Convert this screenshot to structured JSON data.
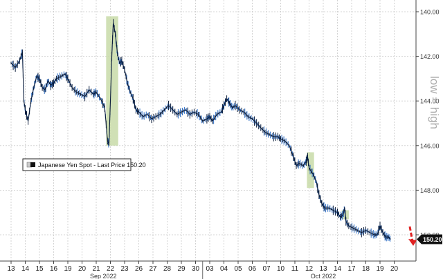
{
  "chart_data": {
    "type": "line",
    "style": "candlestick-like OHLC bars, dark navy with thin blue highlights",
    "x_tick_labels": [
      "13",
      "14",
      "15",
      "16",
      "19",
      "20",
      "21",
      "22",
      "23",
      "26",
      "27",
      "28",
      "29",
      "30",
      "03",
      "04",
      "05",
      "06",
      "07",
      "10",
      "11",
      "12",
      "13",
      "14",
      "17",
      "18",
      "19",
      "20"
    ],
    "x_period_labels": [
      {
        "label": "Sep 2022",
        "between": [
          "19",
          "26"
        ]
      },
      {
        "label": "Oct 2022",
        "between": [
          "12",
          "14"
        ]
      }
    ],
    "y_axis": {
      "side": "right",
      "inverted": true,
      "range": [
        140.0,
        151.0
      ],
      "tick_labels": [
        "140.00",
        "142.00",
        "144.00",
        "146.00",
        "148.00",
        "150.00"
      ]
    },
    "grid": true,
    "series": [
      {
        "name": "Japanese Yen Spot - Last Price",
        "last_value": 150.2,
        "points": [
          [
            0.0,
            142.3
          ],
          [
            0.3,
            142.5
          ],
          [
            0.6,
            142.2
          ],
          [
            0.8,
            141.8
          ],
          [
            0.9,
            144.0
          ],
          [
            1.0,
            144.4
          ],
          [
            1.2,
            144.9
          ],
          [
            1.4,
            144.0
          ],
          [
            1.6,
            143.4
          ],
          [
            1.8,
            142.9
          ],
          [
            2.0,
            143.0
          ],
          [
            2.2,
            143.4
          ],
          [
            2.4,
            143.5
          ],
          [
            2.6,
            143.1
          ],
          [
            2.8,
            143.3
          ],
          [
            3.0,
            143.2
          ],
          [
            3.2,
            143.0
          ],
          [
            3.5,
            142.9
          ],
          [
            3.8,
            142.8
          ],
          [
            4.0,
            143.0
          ],
          [
            4.3,
            143.4
          ],
          [
            4.6,
            143.6
          ],
          [
            4.9,
            143.7
          ],
          [
            5.2,
            143.8
          ],
          [
            5.5,
            143.5
          ],
          [
            5.8,
            143.7
          ],
          [
            6.0,
            143.6
          ],
          [
            6.3,
            143.9
          ],
          [
            6.6,
            144.3
          ],
          [
            6.8,
            145.8
          ],
          [
            6.9,
            145.9
          ],
          [
            7.0,
            144.0
          ],
          [
            7.1,
            142.0
          ],
          [
            7.2,
            140.5
          ],
          [
            7.35,
            141.0
          ],
          [
            7.5,
            141.9
          ],
          [
            7.65,
            142.3
          ],
          [
            7.8,
            142.2
          ],
          [
            8.0,
            142.6
          ],
          [
            8.2,
            143.2
          ],
          [
            8.4,
            143.6
          ],
          [
            8.6,
            143.9
          ],
          [
            8.8,
            144.4
          ],
          [
            9.0,
            144.5
          ],
          [
            9.3,
            144.7
          ],
          [
            9.6,
            144.6
          ],
          [
            9.9,
            144.8
          ],
          [
            10.2,
            144.7
          ],
          [
            10.5,
            144.6
          ],
          [
            10.8,
            144.4
          ],
          [
            11.1,
            144.2
          ],
          [
            11.4,
            144.4
          ],
          [
            11.7,
            144.6
          ],
          [
            12.0,
            144.5
          ],
          [
            12.3,
            144.4
          ],
          [
            12.6,
            144.6
          ],
          [
            12.9,
            144.5
          ],
          [
            13.2,
            144.6
          ],
          [
            13.5,
            144.9
          ],
          [
            13.8,
            144.8
          ],
          [
            14.0,
            144.7
          ],
          [
            14.2,
            144.9
          ],
          [
            14.5,
            144.6
          ],
          [
            14.8,
            144.5
          ],
          [
            15.0,
            144.2
          ],
          [
            15.2,
            143.9
          ],
          [
            15.4,
            144.1
          ],
          [
            15.6,
            144.3
          ],
          [
            15.8,
            144.2
          ],
          [
            16.1,
            144.4
          ],
          [
            16.4,
            144.5
          ],
          [
            16.7,
            144.7
          ],
          [
            17.0,
            144.8
          ],
          [
            17.3,
            145.0
          ],
          [
            17.6,
            145.2
          ],
          [
            17.9,
            145.4
          ],
          [
            18.2,
            145.5
          ],
          [
            18.5,
            145.6
          ],
          [
            18.8,
            145.6
          ],
          [
            19.0,
            145.7
          ],
          [
            19.3,
            145.8
          ],
          [
            19.6,
            146.0
          ],
          [
            19.9,
            146.5
          ],
          [
            20.1,
            146.9
          ],
          [
            20.3,
            146.8
          ],
          [
            20.6,
            146.9
          ],
          [
            20.8,
            146.7
          ],
          [
            20.9,
            146.5
          ],
          [
            21.0,
            147.0
          ],
          [
            21.3,
            147.3
          ],
          [
            21.5,
            147.6
          ],
          [
            21.7,
            148.2
          ],
          [
            21.9,
            148.6
          ],
          [
            22.1,
            148.8
          ],
          [
            22.4,
            148.8
          ],
          [
            22.7,
            148.9
          ],
          [
            23.0,
            149.0
          ],
          [
            23.2,
            149.2
          ],
          [
            23.4,
            149.1
          ],
          [
            23.5,
            148.8
          ],
          [
            23.6,
            149.4
          ],
          [
            23.8,
            149.6
          ],
          [
            24.1,
            149.7
          ],
          [
            24.4,
            149.8
          ],
          [
            24.7,
            149.9
          ],
          [
            25.0,
            149.8
          ],
          [
            25.3,
            149.9
          ],
          [
            25.6,
            150.0
          ],
          [
            25.8,
            150.0
          ],
          [
            26.0,
            149.6
          ],
          [
            26.2,
            149.9
          ],
          [
            26.4,
            150.1
          ],
          [
            26.6,
            150.1
          ],
          [
            26.75,
            150.2
          ]
        ]
      }
    ],
    "highlight_boxes": [
      {
        "x_range": [
          6.7,
          7.55
        ],
        "y_range": [
          140.2,
          146.0
        ]
      },
      {
        "x_range": [
          20.85,
          21.35
        ],
        "y_range": [
          146.3,
          147.9
        ]
      },
      {
        "x_range": [
          23.3,
          23.8
        ],
        "y_range": [
          148.9,
          149.3
        ]
      }
    ],
    "annotation": {
      "text": "low = high",
      "rotated": true
    },
    "legend": {
      "label": "Japanese Yen Spot - Last Price 150.20",
      "position": "left, below center"
    },
    "last_price_label": "150.20",
    "arrow_color": "#e02020",
    "line_color": "#0b1c3a",
    "highlight_color": "#c8dba8"
  }
}
